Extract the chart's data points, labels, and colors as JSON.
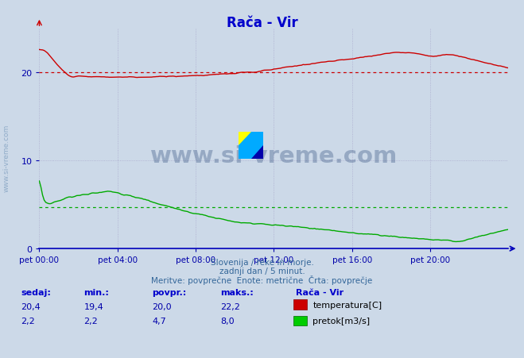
{
  "title": "Rača - Vir",
  "title_color": "#0000cc",
  "bg_color": "#ccd9e8",
  "plot_bg_color": "#ccd9e8",
  "grid_color": "#aaaacc",
  "axis_color": "#0000bb",
  "tick_color": "#0000aa",
  "subtitle_color": "#336699",
  "subtitle_lines": [
    "Slovenija / reke in morje.",
    "zadnji dan / 5 minut.",
    "Meritve: povprečne  Enote: metrične  Črta: povprečje"
  ],
  "temp_color": "#cc0000",
  "flow_color": "#00aa00",
  "watermark_text": "www.si-vreme.com",
  "watermark_color": "#1a3a6e",
  "watermark_alpha": 0.3,
  "temp_avg": 20.0,
  "flow_avg": 4.7,
  "ylim_min": 0,
  "ylim_max": 25,
  "xlim_min": 0,
  "xlim_max": 24,
  "x_ticks": [
    0,
    4,
    8,
    12,
    16,
    20
  ],
  "x_tick_labels": [
    "pet 00:00",
    "pet 04:00",
    "pet 08:00",
    "pet 12:00",
    "pet 16:00",
    "pet 20:00"
  ],
  "y_ticks": [
    0,
    10,
    20
  ],
  "table_headers": [
    "sedaj:",
    "min.:",
    "povpr.:",
    "maks.:"
  ],
  "table_row1": [
    "20,4",
    "19,4",
    "20,0",
    "22,2"
  ],
  "table_row2": [
    "2,2",
    "2,2",
    "4,7",
    "8,0"
  ],
  "legend_station": "Rača - Vir",
  "legend_temp": "temperatura[C]",
  "legend_flow": "pretok[m3/s]",
  "header_color": "#0000cc",
  "value_color": "#0000aa",
  "sidewater_color": "#7799bb"
}
